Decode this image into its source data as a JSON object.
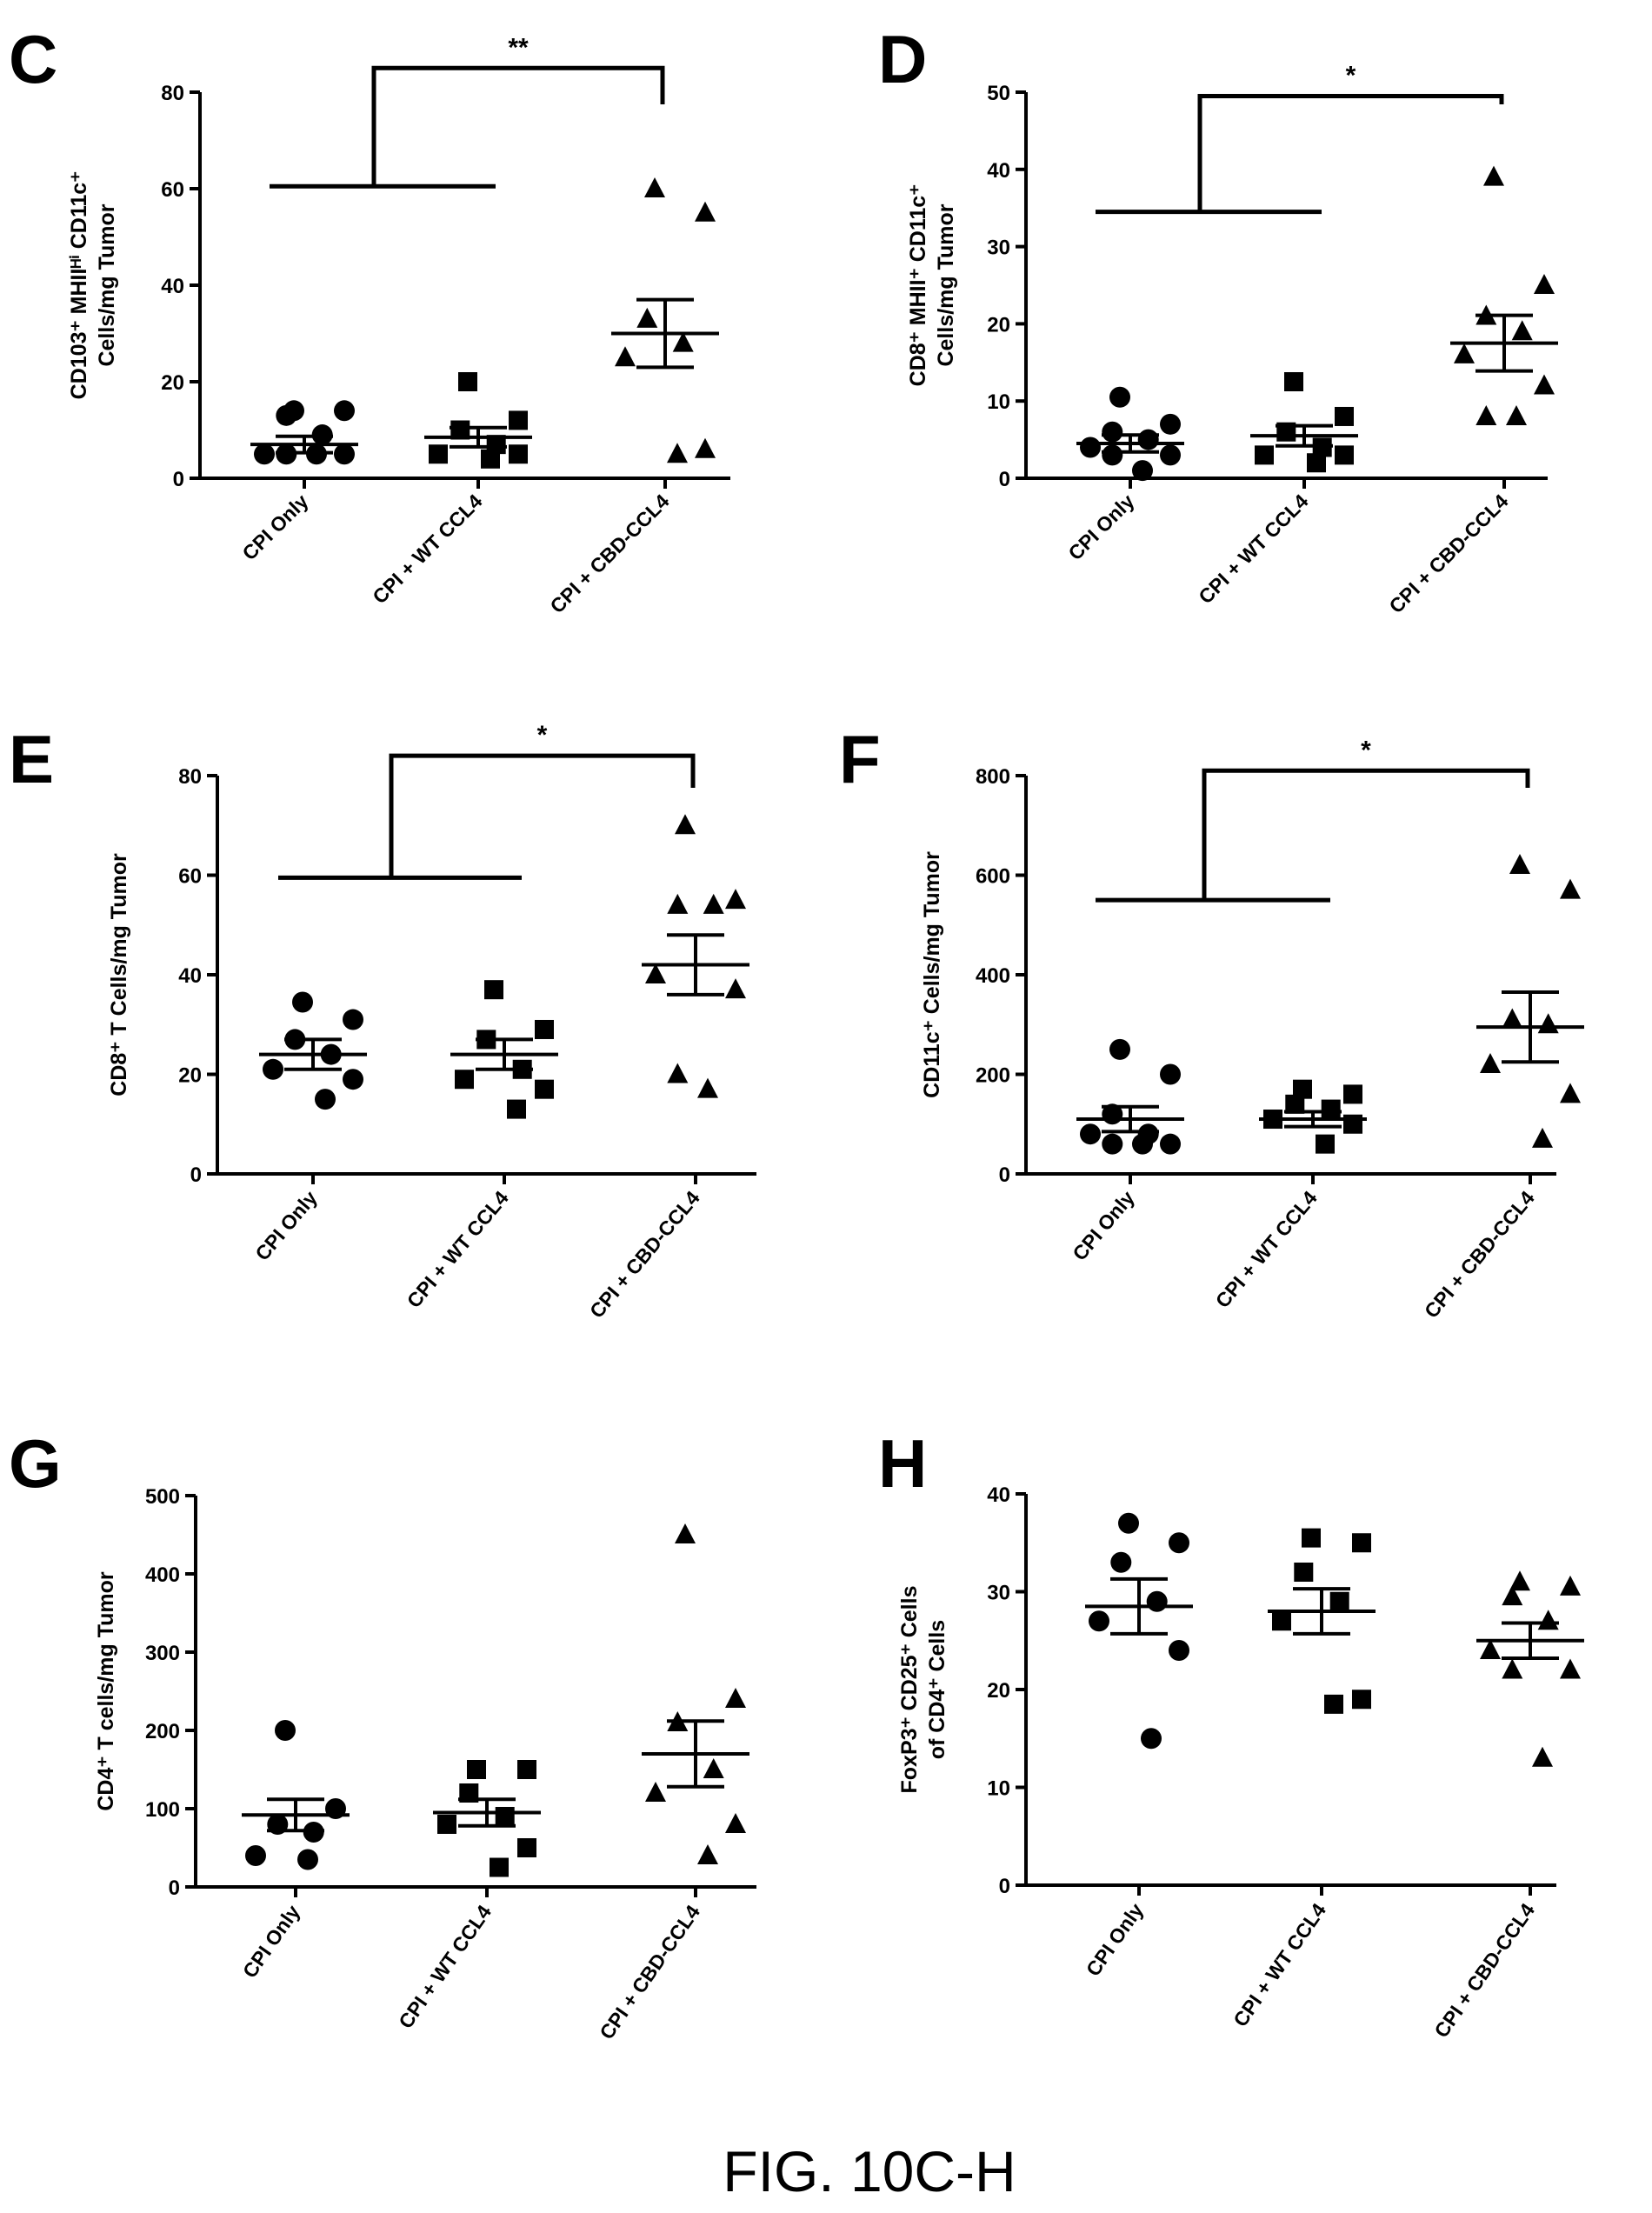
{
  "figure_caption": "FIG. 10C-H",
  "chart_data": [
    {
      "type": "scatter",
      "panel": "C",
      "ylabel_lines": [
        "CD103⁺ MHIIᴴⁱ CD11c⁺",
        "Cells/mg Tumor"
      ],
      "ylim": [
        0,
        80
      ],
      "yticks": [
        0,
        20,
        40,
        60,
        80
      ],
      "categories": [
        "CPI Only",
        "CPI + WT CCL4",
        "CPI + CBD-CCL4"
      ],
      "markers": [
        "circle",
        "square",
        "triangle"
      ],
      "points": [
        [
          14,
          14,
          13,
          9,
          5,
          5,
          5,
          5
        ],
        [
          20,
          12,
          10,
          7,
          5,
          5,
          4
        ],
        [
          60,
          55,
          33,
          28,
          25,
          6,
          5
        ]
      ],
      "means": [
        7,
        8.5,
        30
      ],
      "sem": [
        1.7,
        2,
        7
      ],
      "significance": {
        "label": "**",
        "from_groups": [
          0,
          1
        ],
        "to_group": 2,
        "lower_bar_y": 60.5,
        "upper_bar_y": 85
      }
    },
    {
      "type": "scatter",
      "panel": "D",
      "ylabel_lines": [
        "CD8⁺ MHII⁺ CD11c⁺",
        "Cells/mg Tumor"
      ],
      "ylim": [
        0,
        50
      ],
      "yticks": [
        0,
        10,
        20,
        30,
        40,
        50
      ],
      "categories": [
        "CPI Only",
        "CPI + WT CCL4",
        "CPI + CBD-CCL4"
      ],
      "markers": [
        "circle",
        "square",
        "triangle"
      ],
      "points": [
        [
          10.5,
          7,
          6,
          5,
          4,
          3,
          3,
          1
        ],
        [
          12.5,
          8,
          6,
          4,
          3,
          3,
          2
        ],
        [
          39,
          25,
          21,
          19,
          16,
          12,
          8,
          8
        ]
      ],
      "means": [
        4.5,
        5.5,
        17.5
      ],
      "sem": [
        1.1,
        1.3,
        3.6
      ],
      "significance": {
        "label": "*",
        "from_groups": [
          0,
          1
        ],
        "to_group": 2,
        "lower_bar_y": 34.5,
        "upper_bar_y": 49.5
      }
    },
    {
      "type": "scatter",
      "panel": "E",
      "ylabel_lines": [
        "CD8⁺ T Cells/mg Tumor"
      ],
      "ylim": [
        0,
        80
      ],
      "yticks": [
        0,
        20,
        40,
        60,
        80
      ],
      "categories": [
        "CPI Only",
        "CPI + WT CCL4",
        "CPI + CBD-CCL4"
      ],
      "markers": [
        "circle",
        "square",
        "triangle"
      ],
      "points": [
        [
          34.5,
          31,
          27,
          24,
          21,
          19,
          15
        ],
        [
          37,
          29,
          27,
          21,
          19,
          17,
          13
        ],
        [
          70,
          55,
          54,
          54,
          40,
          37,
          20,
          17
        ]
      ],
      "means": [
        24,
        24,
        42
      ],
      "sem": [
        3,
        3,
        6
      ],
      "significance": {
        "label": "*",
        "from_groups": [
          0,
          1
        ],
        "to_group": 2,
        "lower_bar_y": 59.5,
        "upper_bar_y": 84
      }
    },
    {
      "type": "scatter",
      "panel": "F",
      "ylabel_lines": [
        "CD11c⁺ Cells/mg Tumor"
      ],
      "ylim": [
        0,
        800
      ],
      "yticks": [
        0,
        200,
        400,
        600,
        800
      ],
      "categories": [
        "CPI Only",
        "CPI + WT CCL4",
        "CPI + CBD-CCL4"
      ],
      "markers": [
        "circle",
        "square",
        "triangle"
      ],
      "points": [
        [
          250,
          200,
          120,
          80,
          80,
          60,
          60,
          60
        ],
        [
          170,
          160,
          140,
          130,
          110,
          100,
          60
        ],
        [
          620,
          570,
          310,
          300,
          220,
          160,
          70
        ]
      ],
      "means": [
        110,
        110,
        295
      ],
      "sem": [
        25,
        15,
        70
      ],
      "significance": {
        "label": "*",
        "from_groups": [
          0,
          1
        ],
        "to_group": 2,
        "lower_bar_y": 550,
        "upper_bar_y": 810
      }
    },
    {
      "type": "scatter",
      "panel": "G",
      "ylabel_lines": [
        "CD4⁺ T cells/mg Tumor"
      ],
      "ylim": [
        0,
        500
      ],
      "yticks": [
        0,
        100,
        200,
        300,
        400,
        500
      ],
      "categories": [
        "CPI Only",
        "CPI + WT CCL4",
        "CPI + CBD-CCL4"
      ],
      "markers": [
        "circle",
        "square",
        "triangle"
      ],
      "points": [
        [
          200,
          100,
          80,
          70,
          40,
          35
        ],
        [
          150,
          150,
          120,
          90,
          80,
          50,
          25
        ],
        [
          450,
          240,
          210,
          150,
          120,
          80,
          40
        ]
      ],
      "means": [
        92,
        95,
        170
      ],
      "sem": [
        20,
        17,
        42
      ]
    },
    {
      "type": "scatter",
      "panel": "H",
      "ylabel_lines": [
        "FoxP3⁺ CD25⁺ Cells",
        "of CD4⁺ Cells"
      ],
      "ylim": [
        0,
        40
      ],
      "yticks": [
        0,
        10,
        20,
        30,
        40
      ],
      "categories": [
        "CPI Only",
        "CPI + WT CCL4",
        "CPI + CBD-CCL4"
      ],
      "markers": [
        "circle",
        "square",
        "triangle"
      ],
      "points": [
        [
          37,
          35,
          33,
          29,
          27,
          24,
          15
        ],
        [
          35.5,
          35,
          32,
          29,
          27,
          19,
          18.5
        ],
        [
          31,
          30.5,
          29.5,
          27,
          24,
          22,
          22,
          13
        ]
      ],
      "means": [
        28.5,
        28,
        25
      ],
      "sem": [
        2.8,
        2.3,
        1.8
      ]
    }
  ]
}
